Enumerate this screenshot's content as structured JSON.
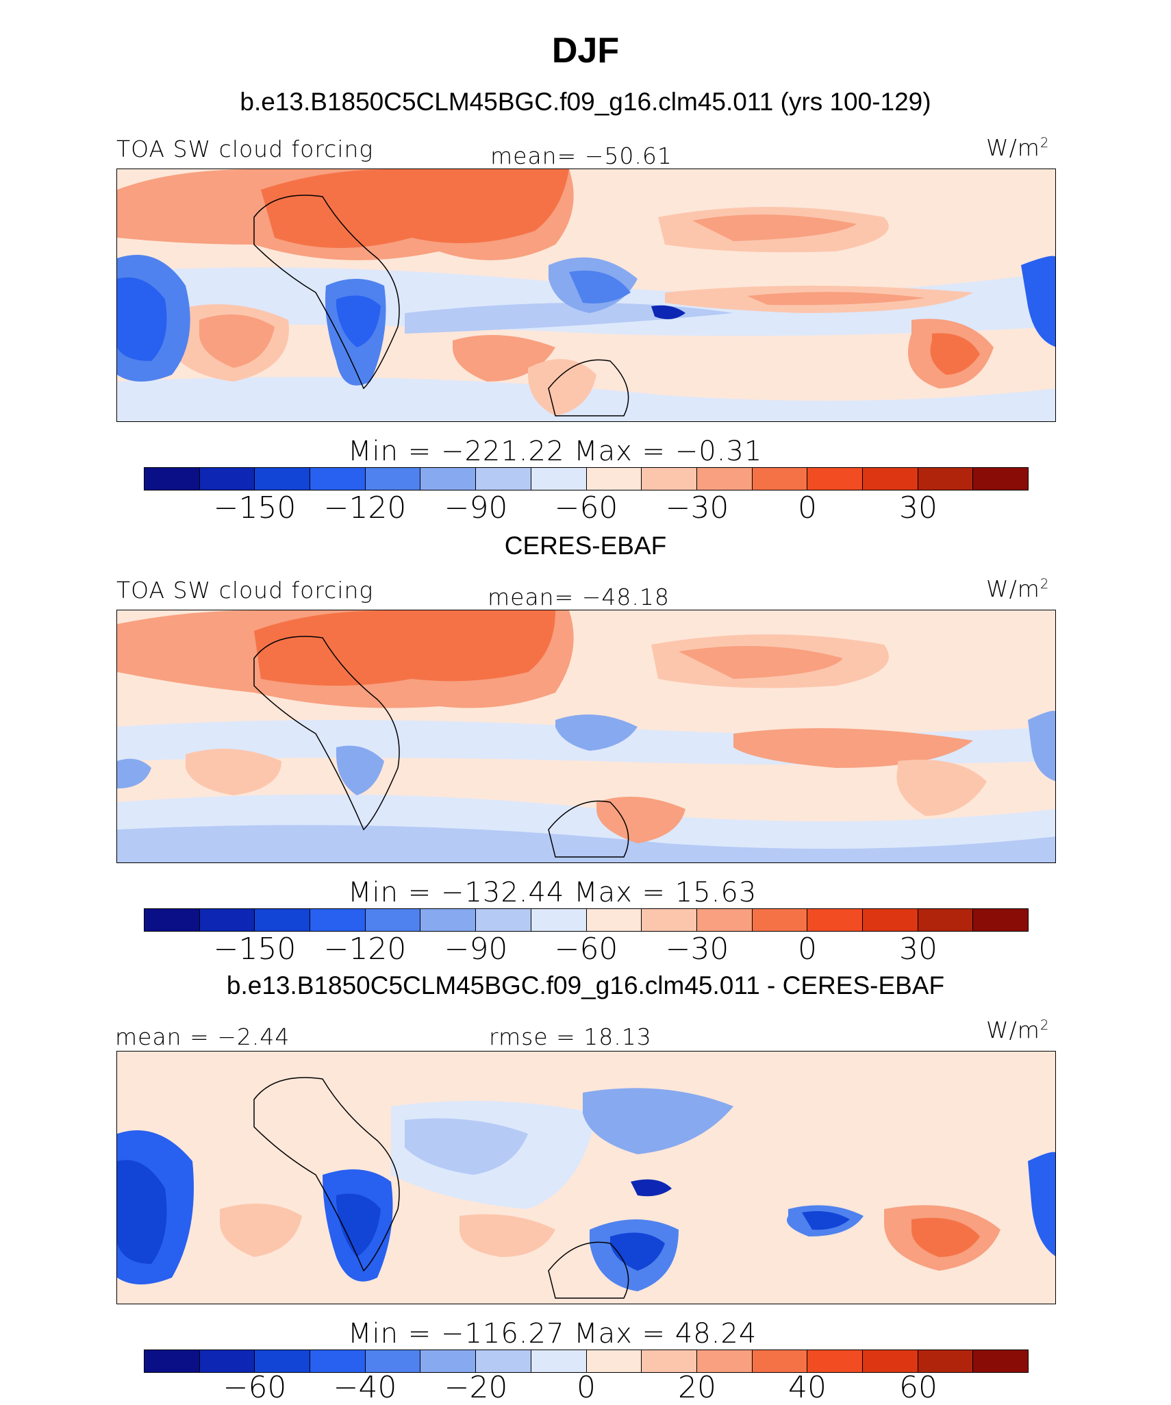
{
  "title": "DJF",
  "colors": [
    "#0a0f88",
    "#0d27b4",
    "#1244d6",
    "#2860f0",
    "#4f82ee",
    "#87a9f0",
    "#b5caf5",
    "#dde8fb",
    "#fde7d9",
    "#fcc6ad",
    "#f8a07f",
    "#f57247",
    "#f14c22",
    "#dc3612",
    "#b0240c",
    "#8a0c06"
  ],
  "panels": [
    {
      "subtitle": "b.e13.B1850C5CLM45BGC.f09_g16.clm45.011 (yrs 100-129)",
      "left_label": "TOA SW cloud forcing",
      "center_label": "mean= −50.61",
      "units": "W/m",
      "units_sup": "2",
      "stats": "Min  =  −221.22  Max  =    −0.31",
      "ticks": [
        "−150",
        "−120",
        "−90",
        "−60",
        "−30",
        "0",
        "30"
      ]
    },
    {
      "subtitle": "CERES-EBAF",
      "left_label": "TOA SW cloud forcing",
      "center_label": "mean= −48.18",
      "units": "W/m",
      "units_sup": "2",
      "stats": "Min  =  −132.44  Max  =    15.63",
      "ticks": [
        "−150",
        "−120",
        "−90",
        "−60",
        "−30",
        "0",
        "30"
      ]
    },
    {
      "subtitle": "b.e13.B1850C5CLM45BGC.f09_g16.clm45.011 - CERES-EBAF",
      "left_label": "mean  =   −2.44",
      "center_label": "rmse  =   18.13",
      "units": "W/m",
      "units_sup": "2",
      "stats": "Min  =  −116.27  Max  =    48.24",
      "ticks": [
        "−60",
        "−40",
        "−20",
        "0",
        "20",
        "40",
        "60"
      ]
    }
  ]
}
